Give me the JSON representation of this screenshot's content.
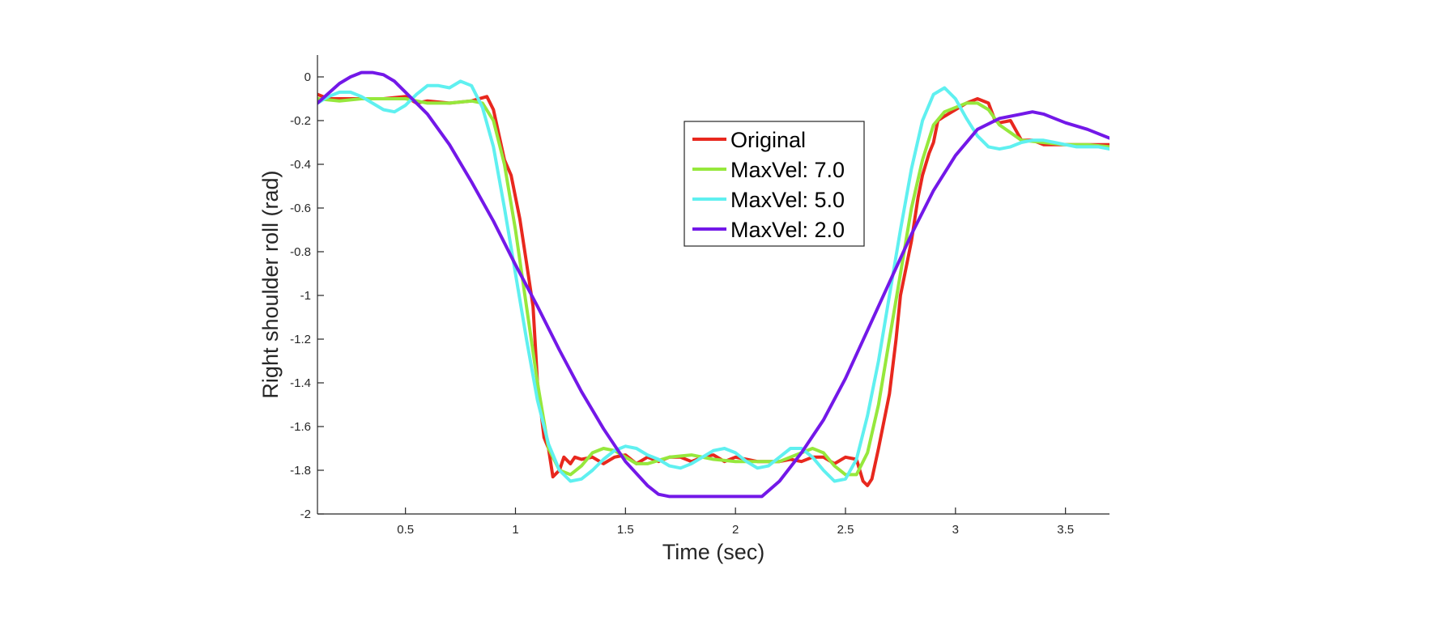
{
  "chart_data": {
    "type": "line",
    "xlabel": "Time (sec)",
    "ylabel": "Right shoulder roll (rad)",
    "xlim": [
      0.1,
      3.7
    ],
    "ylim": [
      -2,
      0.1
    ],
    "xticks": [
      0.5,
      1,
      1.5,
      2,
      2.5,
      3,
      3.5
    ],
    "xtick_labels": [
      "0.5",
      "1",
      "1.5",
      "2",
      "2.5",
      "3",
      "3.5"
    ],
    "yticks": [
      0,
      -0.2,
      -0.4,
      -0.6,
      -0.8,
      -1,
      -1.2,
      -1.4,
      -1.6,
      -1.8,
      -2
    ],
    "ytick_labels": [
      "0",
      "-0.2",
      "-0.4",
      "-0.6",
      "-0.8",
      "-1",
      "-1.2",
      "-1.4",
      "-1.6",
      "-1.8",
      "-2"
    ],
    "grid": false,
    "legend_position": "inside-top-center",
    "series": [
      {
        "name": "Original",
        "color": "#e8281e",
        "x": [
          0.1,
          0.15,
          0.2,
          0.3,
          0.4,
          0.5,
          0.55,
          0.6,
          0.7,
          0.8,
          0.87,
          0.9,
          0.95,
          0.98,
          1.0,
          1.02,
          1.05,
          1.08,
          1.1,
          1.13,
          1.15,
          1.17,
          1.2,
          1.22,
          1.25,
          1.27,
          1.3,
          1.35,
          1.4,
          1.45,
          1.5,
          1.55,
          1.6,
          1.65,
          1.7,
          1.75,
          1.8,
          1.85,
          1.9,
          1.95,
          2.0,
          2.05,
          2.1,
          2.15,
          2.2,
          2.25,
          2.3,
          2.35,
          2.4,
          2.45,
          2.5,
          2.55,
          2.58,
          2.6,
          2.62,
          2.65,
          2.7,
          2.73,
          2.75,
          2.78,
          2.8,
          2.83,
          2.85,
          2.88,
          2.9,
          2.92,
          2.95,
          3.0,
          3.05,
          3.1,
          3.15,
          3.18,
          3.2,
          3.25,
          3.3,
          3.35,
          3.4,
          3.5,
          3.6,
          3.7
        ],
        "y": [
          -0.08,
          -0.1,
          -0.1,
          -0.1,
          -0.1,
          -0.09,
          -0.12,
          -0.11,
          -0.12,
          -0.11,
          -0.09,
          -0.15,
          -0.38,
          -0.45,
          -0.55,
          -0.65,
          -0.85,
          -1.05,
          -1.4,
          -1.65,
          -1.7,
          -1.83,
          -1.8,
          -1.74,
          -1.77,
          -1.74,
          -1.75,
          -1.74,
          -1.77,
          -1.74,
          -1.73,
          -1.77,
          -1.74,
          -1.76,
          -1.74,
          -1.74,
          -1.76,
          -1.74,
          -1.73,
          -1.76,
          -1.74,
          -1.75,
          -1.76,
          -1.76,
          -1.76,
          -1.75,
          -1.76,
          -1.74,
          -1.74,
          -1.77,
          -1.74,
          -1.75,
          -1.85,
          -1.87,
          -1.84,
          -1.7,
          -1.45,
          -1.2,
          -1.0,
          -0.85,
          -0.75,
          -0.55,
          -0.45,
          -0.35,
          -0.3,
          -0.2,
          -0.18,
          -0.15,
          -0.12,
          -0.1,
          -0.12,
          -0.2,
          -0.21,
          -0.2,
          -0.29,
          -0.29,
          -0.31,
          -0.31,
          -0.31,
          -0.31
        ]
      },
      {
        "name": "MaxVel: 7.0",
        "color": "#96e83c",
        "x": [
          0.1,
          0.2,
          0.3,
          0.4,
          0.5,
          0.6,
          0.7,
          0.8,
          0.85,
          0.9,
          0.95,
          1.0,
          1.05,
          1.1,
          1.15,
          1.2,
          1.25,
          1.3,
          1.35,
          1.4,
          1.45,
          1.5,
          1.55,
          1.6,
          1.7,
          1.8,
          1.9,
          2.0,
          2.1,
          2.2,
          2.3,
          2.35,
          2.4,
          2.45,
          2.5,
          2.55,
          2.6,
          2.65,
          2.7,
          2.75,
          2.8,
          2.85,
          2.9,
          2.95,
          3.0,
          3.05,
          3.1,
          3.15,
          3.2,
          3.3,
          3.4,
          3.5,
          3.6,
          3.7
        ],
        "y": [
          -0.1,
          -0.11,
          -0.1,
          -0.1,
          -0.1,
          -0.12,
          -0.12,
          -0.11,
          -0.12,
          -0.2,
          -0.4,
          -0.7,
          -1.05,
          -1.4,
          -1.7,
          -1.8,
          -1.82,
          -1.78,
          -1.72,
          -1.7,
          -1.71,
          -1.74,
          -1.77,
          -1.77,
          -1.74,
          -1.73,
          -1.75,
          -1.76,
          -1.76,
          -1.76,
          -1.72,
          -1.7,
          -1.72,
          -1.78,
          -1.82,
          -1.82,
          -1.72,
          -1.5,
          -1.2,
          -0.9,
          -0.6,
          -0.38,
          -0.22,
          -0.16,
          -0.14,
          -0.12,
          -0.12,
          -0.15,
          -0.22,
          -0.29,
          -0.3,
          -0.31,
          -0.31,
          -0.32
        ]
      },
      {
        "name": "MaxVel: 5.0",
        "color": "#5ff0f0",
        "x": [
          0.1,
          0.15,
          0.2,
          0.25,
          0.3,
          0.35,
          0.4,
          0.45,
          0.5,
          0.55,
          0.6,
          0.65,
          0.7,
          0.75,
          0.8,
          0.85,
          0.9,
          0.95,
          1.0,
          1.05,
          1.1,
          1.15,
          1.2,
          1.25,
          1.3,
          1.35,
          1.4,
          1.45,
          1.5,
          1.55,
          1.6,
          1.65,
          1.7,
          1.75,
          1.8,
          1.85,
          1.9,
          1.95,
          2.0,
          2.05,
          2.1,
          2.15,
          2.2,
          2.25,
          2.3,
          2.35,
          2.4,
          2.45,
          2.5,
          2.55,
          2.6,
          2.65,
          2.7,
          2.75,
          2.8,
          2.85,
          2.9,
          2.95,
          3.0,
          3.05,
          3.1,
          3.15,
          3.2,
          3.25,
          3.3,
          3.35,
          3.4,
          3.45,
          3.5,
          3.55,
          3.6,
          3.65,
          3.7
        ],
        "y": [
          -0.12,
          -0.09,
          -0.07,
          -0.07,
          -0.09,
          -0.12,
          -0.15,
          -0.16,
          -0.13,
          -0.08,
          -0.04,
          -0.04,
          -0.05,
          -0.02,
          -0.04,
          -0.14,
          -0.32,
          -0.6,
          -0.9,
          -1.2,
          -1.48,
          -1.68,
          -1.8,
          -1.85,
          -1.84,
          -1.8,
          -1.75,
          -1.71,
          -1.69,
          -1.7,
          -1.73,
          -1.75,
          -1.78,
          -1.79,
          -1.77,
          -1.74,
          -1.71,
          -1.7,
          -1.72,
          -1.76,
          -1.79,
          -1.78,
          -1.74,
          -1.7,
          -1.7,
          -1.74,
          -1.8,
          -1.85,
          -1.84,
          -1.75,
          -1.55,
          -1.3,
          -1.0,
          -0.7,
          -0.42,
          -0.2,
          -0.08,
          -0.05,
          -0.1,
          -0.19,
          -0.27,
          -0.32,
          -0.33,
          -0.32,
          -0.3,
          -0.29,
          -0.29,
          -0.3,
          -0.31,
          -0.32,
          -0.32,
          -0.32,
          -0.33
        ]
      },
      {
        "name": "MaxVel: 2.0",
        "color": "#7318e8",
        "x": [
          0.1,
          0.2,
          0.25,
          0.3,
          0.35,
          0.4,
          0.45,
          0.5,
          0.6,
          0.7,
          0.8,
          0.9,
          1.0,
          1.1,
          1.2,
          1.3,
          1.4,
          1.5,
          1.6,
          1.65,
          1.7,
          1.8,
          1.9,
          2.0,
          2.1,
          2.12,
          2.2,
          2.3,
          2.4,
          2.5,
          2.6,
          2.7,
          2.8,
          2.9,
          3.0,
          3.1,
          3.2,
          3.3,
          3.35,
          3.4,
          3.45,
          3.5,
          3.6,
          3.7
        ],
        "y": [
          -0.12,
          -0.03,
          0.0,
          0.02,
          0.02,
          0.01,
          -0.02,
          -0.07,
          -0.17,
          -0.31,
          -0.48,
          -0.66,
          -0.86,
          -1.05,
          -1.25,
          -1.44,
          -1.61,
          -1.76,
          -1.87,
          -1.91,
          -1.92,
          -1.92,
          -1.92,
          -1.92,
          -1.92,
          -1.92,
          -1.85,
          -1.72,
          -1.57,
          -1.38,
          -1.16,
          -0.94,
          -0.72,
          -0.52,
          -0.36,
          -0.24,
          -0.19,
          -0.17,
          -0.16,
          -0.17,
          -0.19,
          -0.21,
          -0.24,
          -0.28
        ]
      }
    ]
  }
}
